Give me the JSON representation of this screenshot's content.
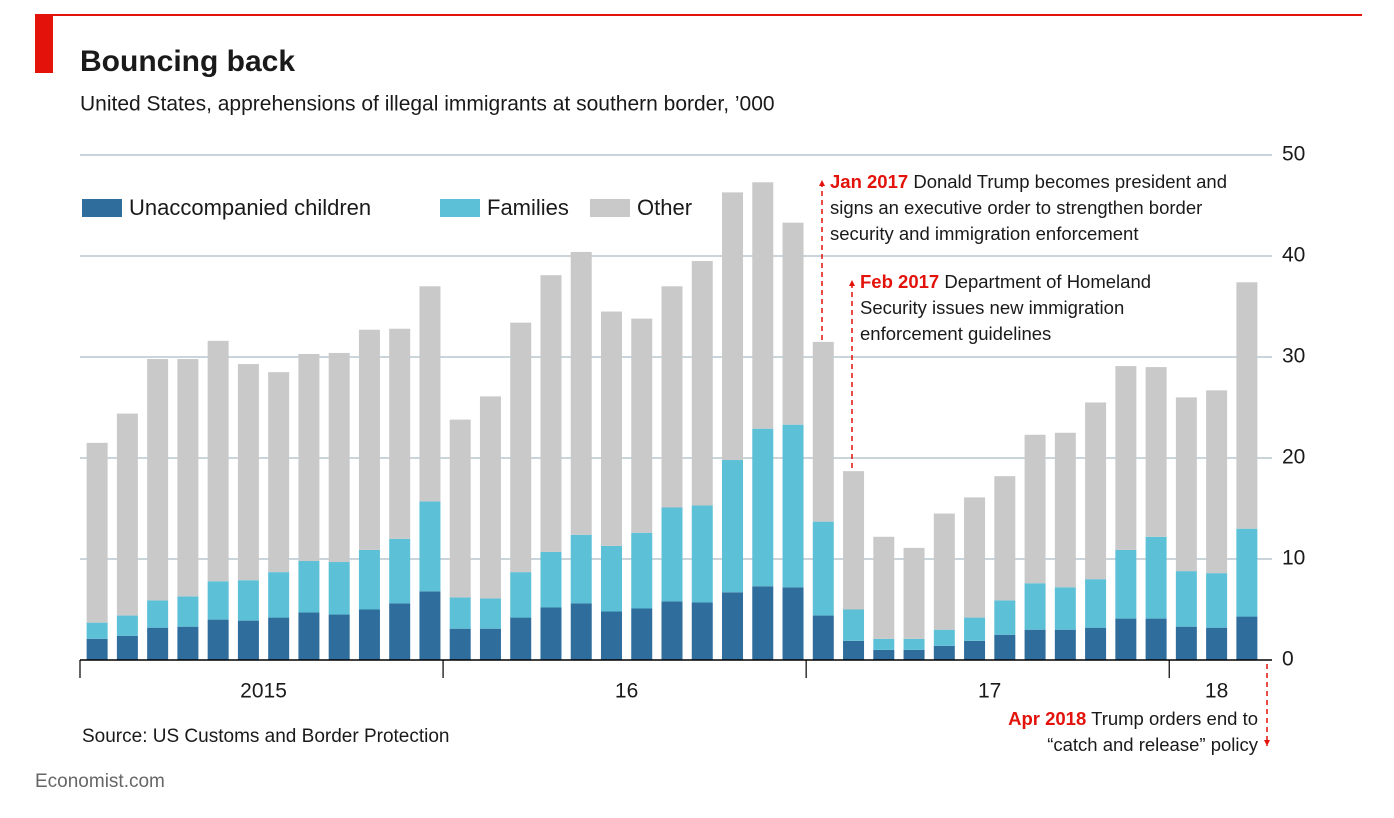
{
  "chart_data": {
    "type": "stacked_bar",
    "title": "Bouncing back",
    "subtitle": "United States, apprehensions of illegal immigrants at southern border, ’000",
    "source": "Source: US Customs and Border Protection",
    "footer": "Economist.com",
    "categories": [
      "2015",
      null,
      null,
      null,
      null,
      null,
      null,
      null,
      null,
      null,
      null,
      null,
      "16",
      null,
      null,
      null,
      null,
      null,
      null,
      null,
      null,
      null,
      null,
      null,
      "17",
      null,
      null,
      null,
      null,
      null,
      null,
      null,
      null,
      null,
      null,
      null,
      "18",
      null,
      null
    ],
    "series": [
      {
        "name": "Unaccompanied children",
        "color": "#2e6d9c",
        "values": [
          2.1,
          2.4,
          3.2,
          3.3,
          4.0,
          3.9,
          4.2,
          4.7,
          4.5,
          5.0,
          5.6,
          6.8,
          3.1,
          3.1,
          4.2,
          5.2,
          5.6,
          4.8,
          5.1,
          5.8,
          5.7,
          6.7,
          7.3,
          7.2,
          4.4,
          1.9,
          1.0,
          1.0,
          1.4,
          1.9,
          2.5,
          3.0,
          3.0,
          3.2,
          4.1,
          4.1,
          3.3,
          3.2,
          4.3
        ]
      },
      {
        "name": "Families",
        "color": "#5cc0d7",
        "values": [
          1.6,
          2.0,
          2.7,
          3.0,
          3.8,
          4.0,
          4.5,
          5.1,
          5.2,
          5.9,
          6.4,
          8.9,
          3.1,
          3.0,
          4.5,
          5.5,
          6.8,
          6.5,
          7.5,
          9.3,
          9.6,
          13.1,
          15.6,
          16.1,
          9.3,
          3.1,
          1.1,
          1.1,
          1.6,
          2.3,
          3.4,
          4.6,
          4.2,
          4.8,
          6.8,
          8.1,
          5.5,
          5.4,
          8.7
        ]
      },
      {
        "name": "Other",
        "color": "#c9c9c9",
        "values": [
          17.8,
          20.0,
          23.9,
          23.5,
          23.8,
          21.4,
          19.8,
          20.5,
          20.7,
          21.8,
          20.8,
          21.3,
          17.6,
          20.0,
          24.7,
          27.4,
          28.0,
          23.2,
          21.2,
          21.9,
          24.2,
          26.5,
          24.4,
          20.0,
          17.8,
          13.7,
          10.1,
          9.0,
          11.5,
          11.9,
          12.3,
          14.7,
          15.3,
          17.5,
          18.2,
          16.8,
          17.2,
          18.1,
          24.4
        ]
      }
    ],
    "ylim": [
      0,
      50
    ],
    "yticks": [
      0,
      10,
      20,
      30,
      40,
      50
    ],
    "grid": true,
    "annotations": [
      {
        "date": "Jan 2017",
        "lines": [
          "Donald Trump becomes president and",
          "signs an executive order to strengthen border",
          "security and immigration enforcement"
        ]
      },
      {
        "date": "Feb 2017",
        "lines": [
          "Department of Homeland",
          "Security issues new immigration",
          "enforcement guidelines"
        ]
      },
      {
        "date": "Apr 2018",
        "lines": [
          "Trump orders end to",
          "“catch and release” policy"
        ]
      }
    ]
  }
}
